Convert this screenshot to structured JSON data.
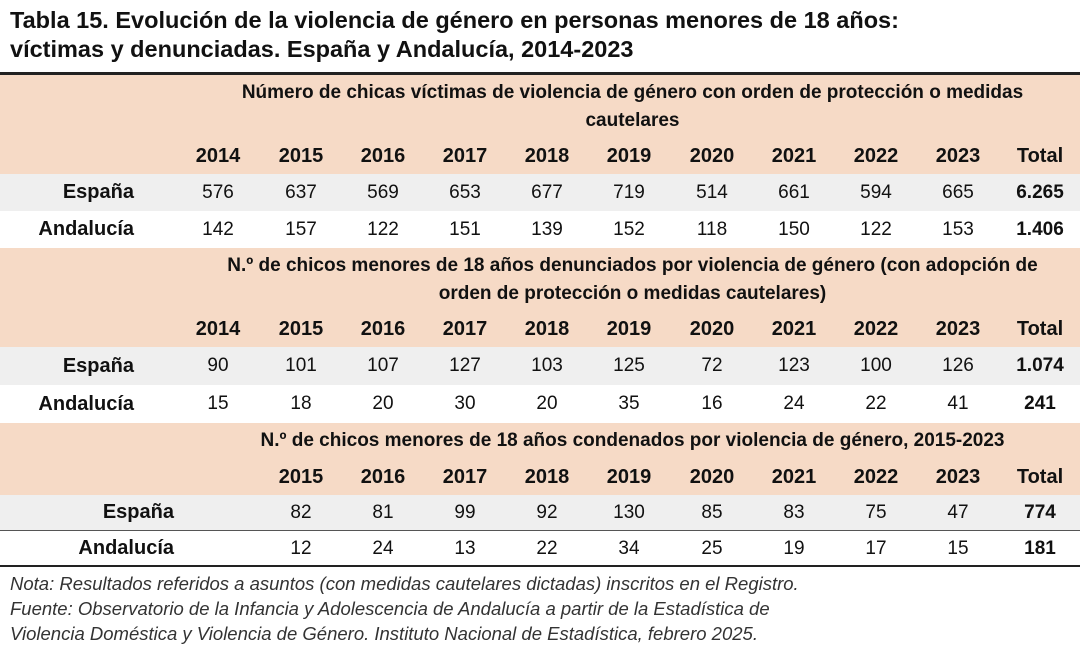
{
  "title": {
    "line1": "Tabla 15. Evolución de la violencia de género en personas menores de 18 años:",
    "line2": "víctimas y denunciadas. España y Andalucía, 2014-2023"
  },
  "colors": {
    "header_band": "#f6dac6",
    "row_band": "#efefef",
    "rule": "#222222"
  },
  "sections": [
    {
      "heading_line1": "Número de chicas víctimas de violencia de género con orden de protección o medidas",
      "heading_line2": "cautelares",
      "columns": [
        "2014",
        "2015",
        "2016",
        "2017",
        "2018",
        "2019",
        "2020",
        "2021",
        "2022",
        "2023",
        "Total"
      ],
      "rows": [
        {
          "label": "España",
          "values": [
            "576",
            "637",
            "569",
            "653",
            "677",
            "719",
            "514",
            "661",
            "594",
            "665",
            "6.265"
          ]
        },
        {
          "label": "Andalucía",
          "values": [
            "142",
            "157",
            "122",
            "151",
            "139",
            "152",
            "118",
            "150",
            "122",
            "153",
            "1.406"
          ]
        }
      ]
    },
    {
      "heading_line1": "N.º de chicos menores de 18 años denunciados por violencia de género (con adopción de",
      "heading_line2": "orden de protección o medidas cautelares)",
      "columns": [
        "2014",
        "2015",
        "2016",
        "2017",
        "2018",
        "2019",
        "2020",
        "2021",
        "2022",
        "2023",
        "Total"
      ],
      "rows": [
        {
          "label": "España",
          "values": [
            "90",
            "101",
            "107",
            "127",
            "103",
            "125",
            "72",
            "123",
            "100",
            "126",
            "1.074"
          ]
        },
        {
          "label": "Andalucía",
          "values": [
            "15",
            "18",
            "20",
            "30",
            "20",
            "35",
            "16",
            "24",
            "22",
            "41",
            "241"
          ]
        }
      ]
    },
    {
      "heading_line1": "N.º de chicos menores de 18 años condenados por violencia de género, 2015-2023",
      "columns": [
        "2015",
        "2016",
        "2017",
        "2018",
        "2019",
        "2020",
        "2021",
        "2022",
        "2023",
        "Total"
      ],
      "rows": [
        {
          "label": "España",
          "values": [
            "82",
            "81",
            "99",
            "92",
            "130",
            "85",
            "83",
            "75",
            "47",
            "774"
          ]
        },
        {
          "label": "Andalucía",
          "values": [
            "12",
            "24",
            "13",
            "22",
            "34",
            "25",
            "19",
            "17",
            "15",
            "181"
          ]
        }
      ]
    }
  ],
  "note": {
    "line1": "Nota: Resultados referidos a asuntos (con medidas cautelares dictadas) inscritos en el Registro.",
    "line2": "Fuente: Observatorio de la Infancia y Adolescencia de Andalucía a partir de la Estadística de",
    "line3": "Violencia Doméstica y Violencia de Género. Instituto Nacional de Estadística, febrero 2025."
  }
}
